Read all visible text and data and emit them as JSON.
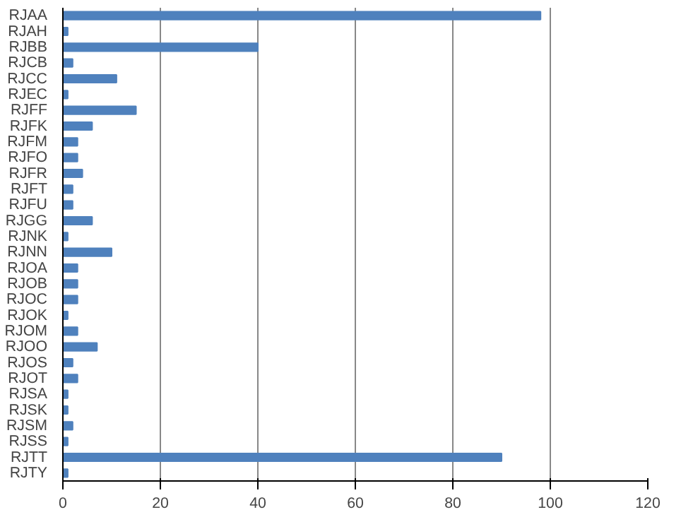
{
  "chart_data": {
    "type": "bar",
    "orientation": "horizontal",
    "categories": [
      "RJAA",
      "RJAH",
      "RJBB",
      "RJCB",
      "RJCC",
      "RJEC",
      "RJFF",
      "RJFK",
      "RJFM",
      "RJFO",
      "RJFR",
      "RJFT",
      "RJFU",
      "RJGG",
      "RJNK",
      "RJNN",
      "RJOA",
      "RJOB",
      "RJOC",
      "RJOK",
      "RJOM",
      "RJOO",
      "RJOS",
      "RJOT",
      "RJSA",
      "RJSK",
      "RJSM",
      "RJSS",
      "RJTT",
      "RJTY"
    ],
    "values": [
      98,
      1,
      40,
      2,
      11,
      1,
      15,
      6,
      3,
      3,
      4,
      2,
      2,
      6,
      1,
      10,
      3,
      3,
      3,
      1,
      3,
      7,
      2,
      3,
      1,
      1,
      2,
      1,
      90,
      1
    ],
    "color": "#4f81bd",
    "xlim": [
      0,
      120
    ],
    "xticks": [
      0,
      20,
      40,
      60,
      80,
      100,
      120
    ],
    "grid": "x"
  }
}
